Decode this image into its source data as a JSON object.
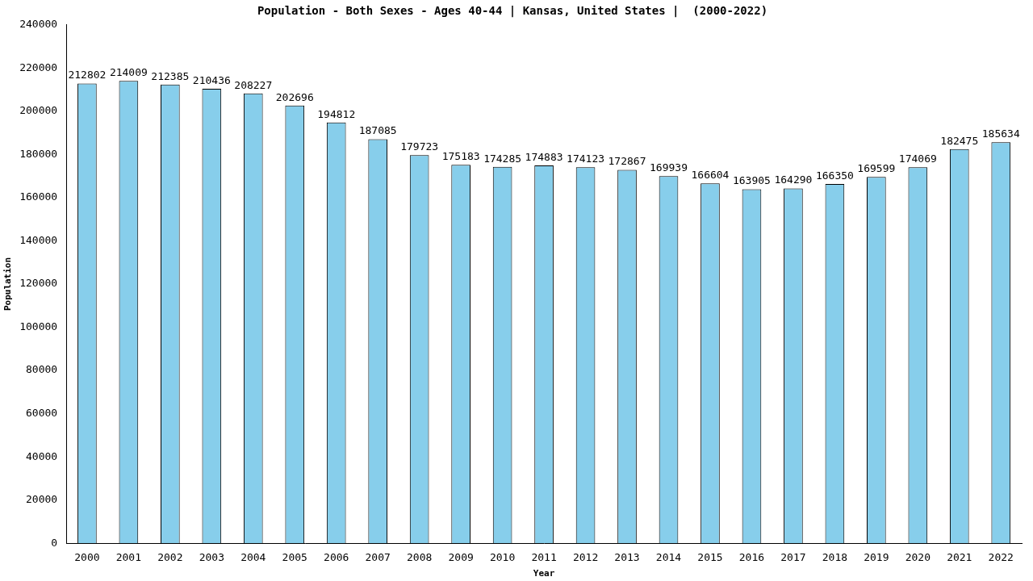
{
  "chart_data": {
    "type": "bar",
    "title": "Population - Both Sexes - Ages 40-44 | Kansas, United States |  (2000-2022)",
    "x_label": "Year",
    "y_label": "Population",
    "categories": [
      "2000",
      "2001",
      "2002",
      "2003",
      "2004",
      "2005",
      "2006",
      "2007",
      "2008",
      "2009",
      "2010",
      "2011",
      "2012",
      "2013",
      "2014",
      "2015",
      "2016",
      "2017",
      "2018",
      "2019",
      "2020",
      "2021",
      "2022"
    ],
    "values": [
      212802,
      214009,
      212385,
      210436,
      208227,
      202696,
      194812,
      187085,
      179723,
      175183,
      174285,
      174883,
      174123,
      172867,
      169939,
      166604,
      163905,
      164290,
      166350,
      169599,
      174069,
      182475,
      185634
    ],
    "color": "#87ceeb",
    "ylim": [
      0,
      240000
    ],
    "yticks": [
      0,
      20000,
      40000,
      60000,
      80000,
      100000,
      120000,
      140000,
      160000,
      180000,
      200000,
      220000,
      240000
    ],
    "grid": false,
    "data_labels": true
  }
}
